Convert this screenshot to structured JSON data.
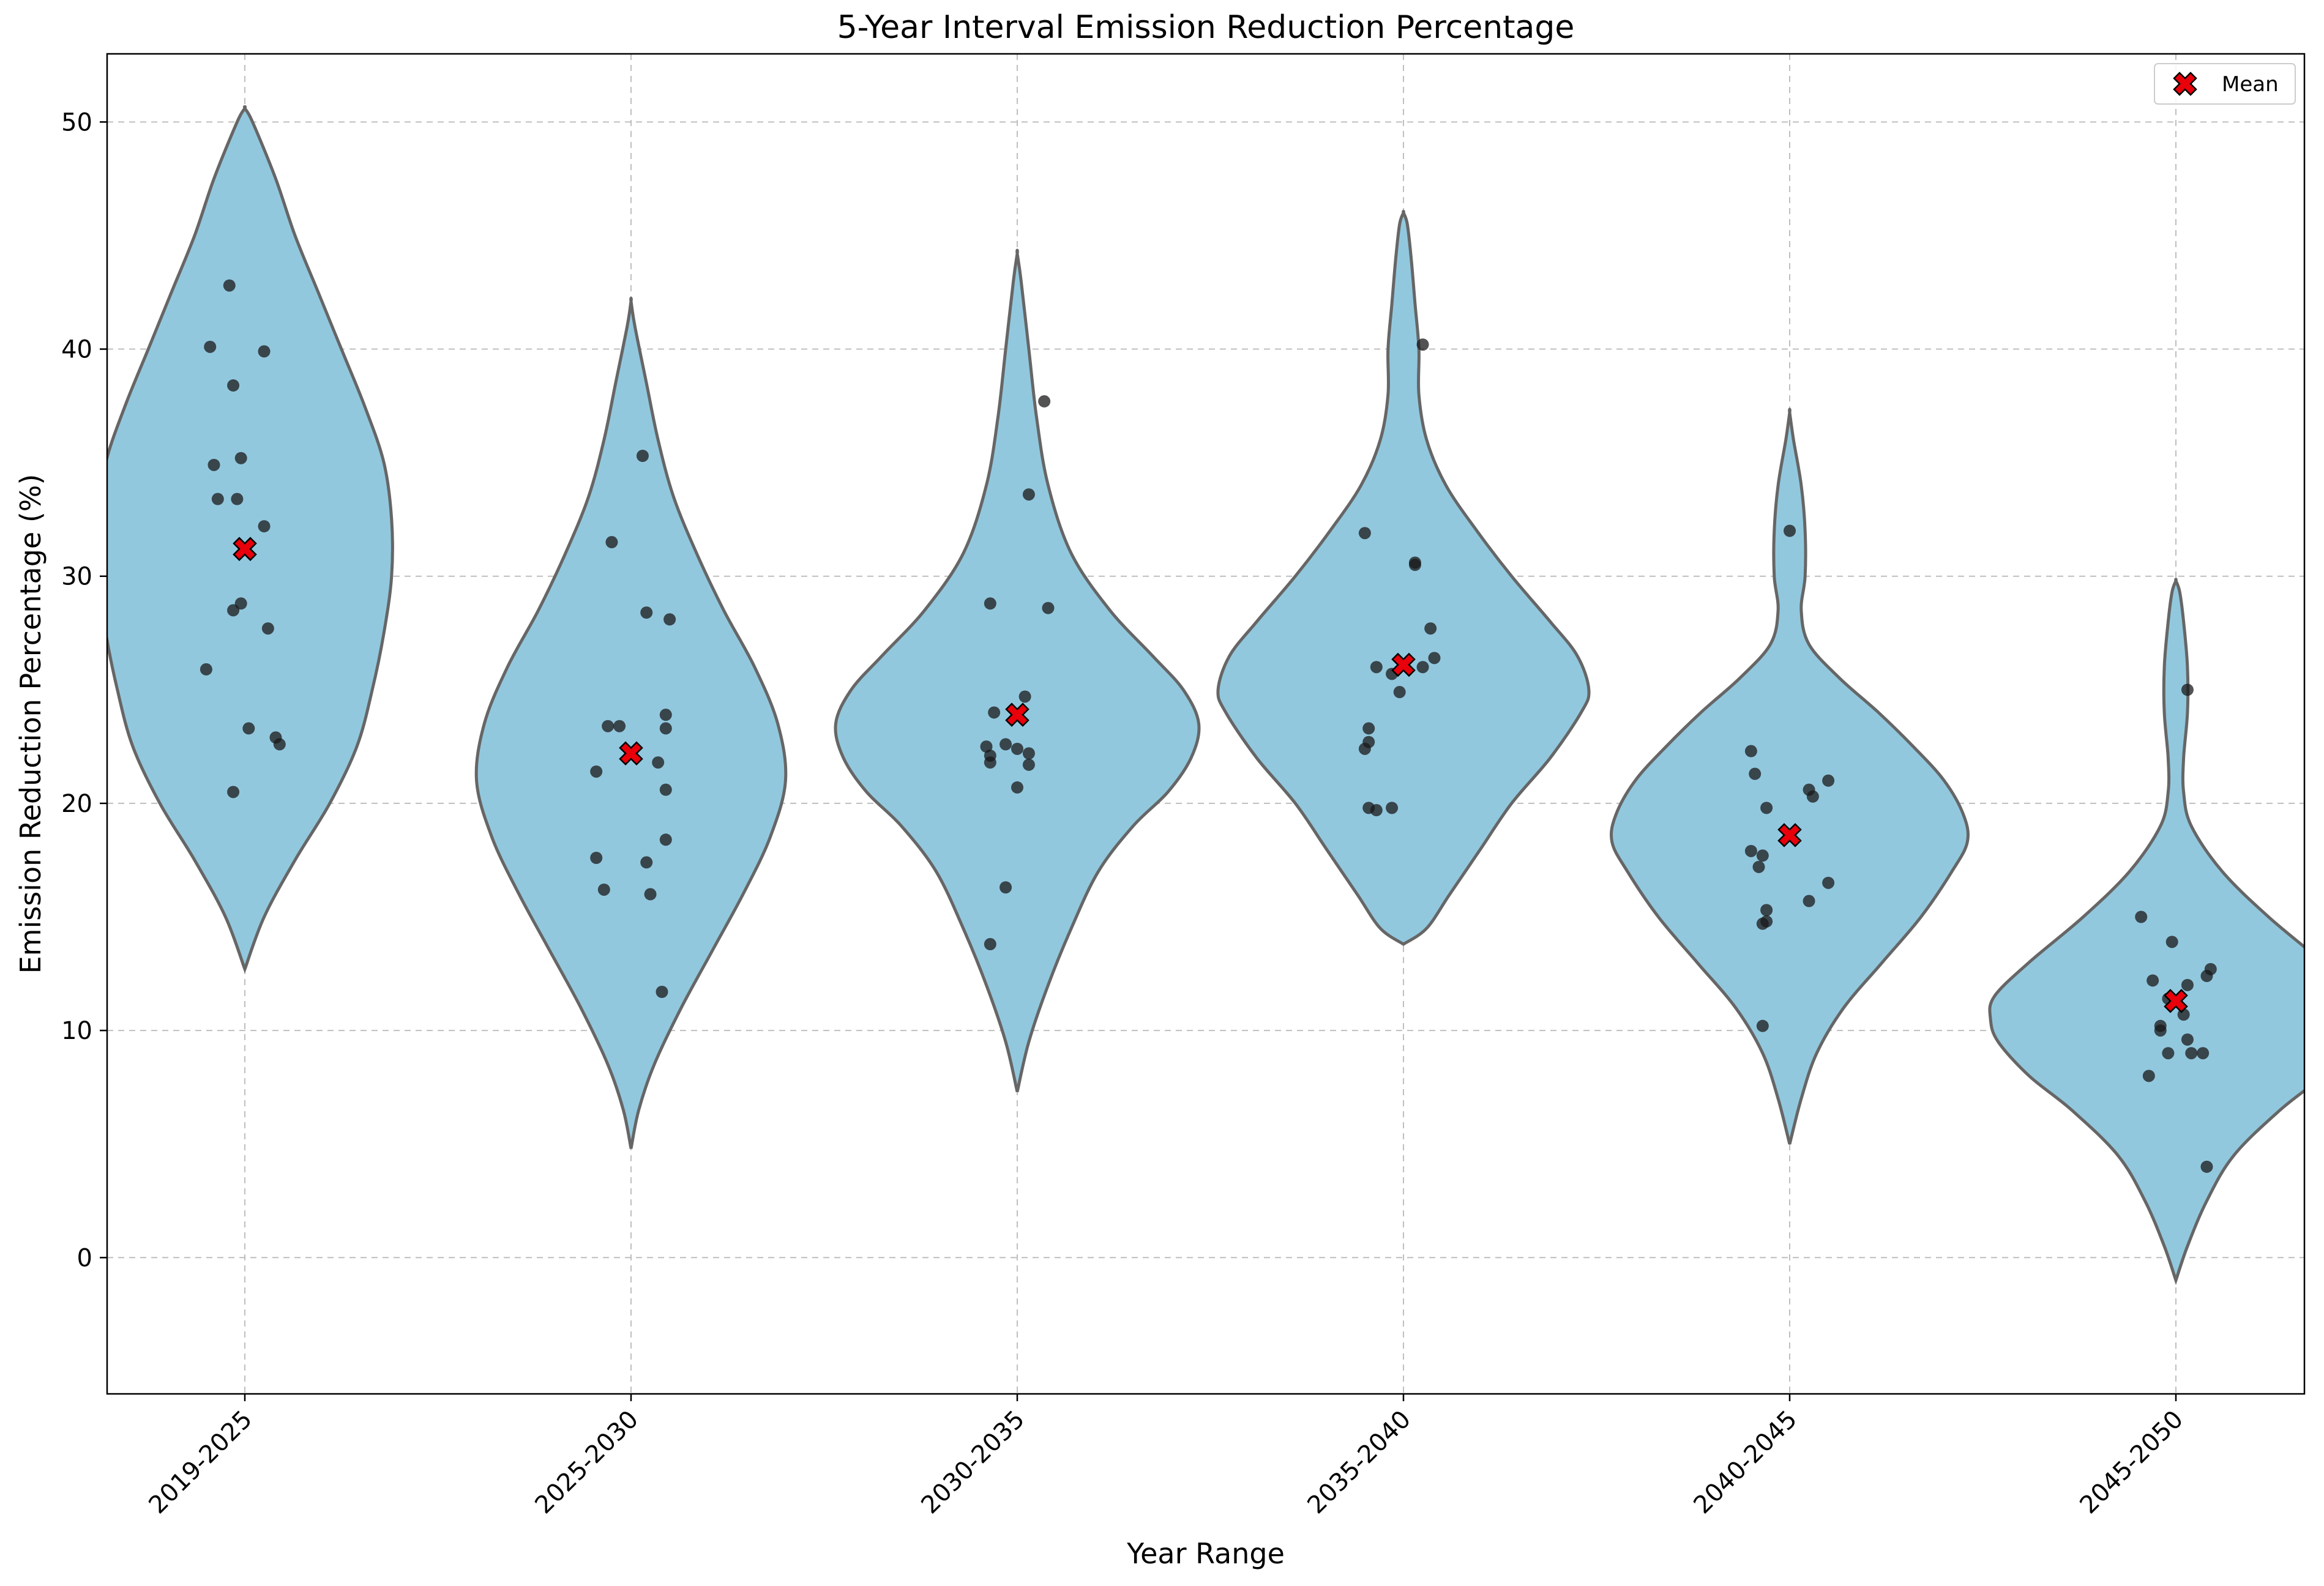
{
  "chart_data": {
    "type": "violin",
    "title": "5-Year Interval Emission Reduction Percentage",
    "xlabel": "Year Range",
    "ylabel": "Emission Reduction Percentage (%)",
    "ylim": [
      -6,
      53
    ],
    "yticks": [
      0,
      10,
      20,
      30,
      40,
      50
    ],
    "grid": true,
    "legend": {
      "position": "top-right",
      "entries": [
        {
          "label": "Mean",
          "marker": "red-x"
        }
      ]
    },
    "colors": {
      "violin_fill": "#92c8de",
      "violin_edge": "#666666",
      "points": "#1a1a1a",
      "mean": "#e8000b"
    },
    "categories": [
      "2019-2025",
      "2025-2030",
      "2030-2035",
      "2035-2040",
      "2040-2045",
      "2045-2050"
    ],
    "means": [
      31.2,
      22.2,
      23.9,
      26.1,
      18.6,
      11.3
    ],
    "density": [
      {
        "range": [
          12.7,
          50.6
        ],
        "profile": [
          [
            12.7,
            0.0
          ],
          [
            15.0,
            0.05
          ],
          [
            17.5,
            0.13
          ],
          [
            20.0,
            0.22
          ],
          [
            22.5,
            0.29
          ],
          [
            25.0,
            0.33
          ],
          [
            27.5,
            0.36
          ],
          [
            30.0,
            0.38
          ],
          [
            32.5,
            0.38
          ],
          [
            35.0,
            0.36
          ],
          [
            37.5,
            0.31
          ],
          [
            40.0,
            0.25
          ],
          [
            42.5,
            0.19
          ],
          [
            45.0,
            0.13
          ],
          [
            47.5,
            0.08
          ],
          [
            50.0,
            0.02
          ],
          [
            50.6,
            0.0
          ]
        ]
      },
      {
        "range": [
          4.8,
          42.1
        ],
        "profile": [
          [
            4.8,
            0.0
          ],
          [
            6.5,
            0.02
          ],
          [
            8.5,
            0.06
          ],
          [
            11.0,
            0.13
          ],
          [
            13.5,
            0.21
          ],
          [
            16.0,
            0.29
          ],
          [
            18.5,
            0.36
          ],
          [
            21.0,
            0.4
          ],
          [
            23.5,
            0.38
          ],
          [
            26.0,
            0.32
          ],
          [
            28.5,
            0.24
          ],
          [
            31.0,
            0.17
          ],
          [
            33.5,
            0.11
          ],
          [
            36.0,
            0.07
          ],
          [
            38.5,
            0.04
          ],
          [
            41.0,
            0.01
          ],
          [
            42.1,
            0.0
          ]
        ]
      },
      {
        "range": [
          7.3,
          44.2
        ],
        "profile": [
          [
            7.3,
            0.0
          ],
          [
            9.5,
            0.03
          ],
          [
            12.0,
            0.08
          ],
          [
            14.5,
            0.14
          ],
          [
            17.0,
            0.21
          ],
          [
            19.0,
            0.3
          ],
          [
            20.5,
            0.39
          ],
          [
            22.0,
            0.45
          ],
          [
            23.5,
            0.47
          ],
          [
            25.0,
            0.43
          ],
          [
            26.5,
            0.35
          ],
          [
            28.5,
            0.24
          ],
          [
            31.0,
            0.14
          ],
          [
            34.0,
            0.08
          ],
          [
            37.0,
            0.05
          ],
          [
            40.0,
            0.03
          ],
          [
            43.0,
            0.01
          ],
          [
            44.2,
            0.0
          ]
        ]
      },
      {
        "range": [
          13.8,
          46.0
        ],
        "profile": [
          [
            13.8,
            0.0
          ],
          [
            14.5,
            0.06
          ],
          [
            16.0,
            0.12
          ],
          [
            18.0,
            0.2
          ],
          [
            20.0,
            0.28
          ],
          [
            22.0,
            0.38
          ],
          [
            24.0,
            0.46
          ],
          [
            25.0,
            0.48
          ],
          [
            26.5,
            0.45
          ],
          [
            28.0,
            0.38
          ],
          [
            30.0,
            0.28
          ],
          [
            32.0,
            0.19
          ],
          [
            34.0,
            0.11
          ],
          [
            36.0,
            0.06
          ],
          [
            38.0,
            0.04
          ],
          [
            40.0,
            0.04
          ],
          [
            42.0,
            0.03
          ],
          [
            44.0,
            0.02
          ],
          [
            45.5,
            0.01
          ],
          [
            46.0,
            0.0
          ]
        ]
      },
      {
        "range": [
          5.0,
          37.2
        ],
        "profile": [
          [
            5.0,
            0.0
          ],
          [
            7.0,
            0.03
          ],
          [
            9.0,
            0.07
          ],
          [
            11.0,
            0.14
          ],
          [
            13.0,
            0.24
          ],
          [
            15.0,
            0.34
          ],
          [
            17.0,
            0.42
          ],
          [
            18.3,
            0.46
          ],
          [
            19.5,
            0.45
          ],
          [
            21.0,
            0.4
          ],
          [
            22.5,
            0.32
          ],
          [
            24.0,
            0.23
          ],
          [
            25.5,
            0.13
          ],
          [
            27.0,
            0.05
          ],
          [
            28.5,
            0.03
          ],
          [
            30.0,
            0.04
          ],
          [
            32.0,
            0.04
          ],
          [
            34.0,
            0.03
          ],
          [
            36.0,
            0.01
          ],
          [
            37.2,
            0.0
          ]
        ]
      },
      {
        "range": [
          -1.0,
          29.8
        ],
        "profile": [
          [
            -1.0,
            0.0
          ],
          [
            0.5,
            0.03
          ],
          [
            2.5,
            0.08
          ],
          [
            4.5,
            0.15
          ],
          [
            6.5,
            0.27
          ],
          [
            8.0,
            0.38
          ],
          [
            9.5,
            0.46
          ],
          [
            10.5,
            0.48
          ],
          [
            11.5,
            0.47
          ],
          [
            13.0,
            0.38
          ],
          [
            15.0,
            0.24
          ],
          [
            17.0,
            0.12
          ],
          [
            19.0,
            0.04
          ],
          [
            20.5,
            0.02
          ],
          [
            22.0,
            0.02
          ],
          [
            24.0,
            0.03
          ],
          [
            26.0,
            0.03
          ],
          [
            28.0,
            0.02
          ],
          [
            29.3,
            0.01
          ],
          [
            29.8,
            0.0
          ]
        ]
      }
    ],
    "points": [
      [
        [
          -0.04,
          42.8
        ],
        [
          -0.09,
          40.1
        ],
        [
          0.05,
          39.9
        ],
        [
          -0.03,
          38.4
        ],
        [
          -0.08,
          34.9
        ],
        [
          -0.01,
          35.2
        ],
        [
          -0.07,
          33.4
        ],
        [
          -0.02,
          33.4
        ],
        [
          0.05,
          32.2
        ],
        [
          -0.03,
          28.5
        ],
        [
          -0.01,
          28.8
        ],
        [
          0.06,
          27.7
        ],
        [
          -0.1,
          25.9
        ],
        [
          0.01,
          23.3
        ],
        [
          0.08,
          22.9
        ],
        [
          0.09,
          22.6
        ],
        [
          -0.03,
          20.5
        ]
      ],
      [
        [
          0.03,
          35.3
        ],
        [
          -0.05,
          31.5
        ],
        [
          0.04,
          28.4
        ],
        [
          0.1,
          28.1
        ],
        [
          -0.06,
          23.4
        ],
        [
          -0.03,
          23.4
        ],
        [
          0.09,
          23.9
        ],
        [
          0.09,
          23.3
        ],
        [
          0.07,
          21.8
        ],
        [
          -0.09,
          21.4
        ],
        [
          0.09,
          20.6
        ],
        [
          0.09,
          18.4
        ],
        [
          -0.09,
          17.6
        ],
        [
          0.04,
          17.4
        ],
        [
          -0.07,
          16.2
        ],
        [
          0.05,
          16.0
        ],
        [
          0.08,
          11.7
        ]
      ],
      [
        [
          0.07,
          37.7
        ],
        [
          0.03,
          33.6
        ],
        [
          -0.07,
          28.8
        ],
        [
          0.08,
          28.6
        ],
        [
          -0.06,
          24.0
        ],
        [
          0.02,
          24.7
        ],
        [
          0.0,
          23.9
        ],
        [
          -0.08,
          22.5
        ],
        [
          -0.03,
          22.6
        ],
        [
          0.0,
          22.4
        ],
        [
          0.03,
          22.2
        ],
        [
          -0.07,
          22.1
        ],
        [
          -0.07,
          21.8
        ],
        [
          0.03,
          21.7
        ],
        [
          0.0,
          20.7
        ],
        [
          -0.03,
          16.3
        ],
        [
          -0.07,
          13.8
        ]
      ],
      [
        [
          0.05,
          40.2
        ],
        [
          -0.1,
          31.9
        ],
        [
          0.03,
          30.6
        ],
        [
          0.03,
          30.5
        ],
        [
          0.07,
          27.7
        ],
        [
          0.08,
          26.4
        ],
        [
          -0.07,
          26.0
        ],
        [
          0.05,
          26.0
        ],
        [
          -0.03,
          25.7
        ],
        [
          -0.01,
          24.9
        ],
        [
          -0.09,
          23.3
        ],
        [
          -0.09,
          22.7
        ],
        [
          -0.1,
          22.4
        ],
        [
          -0.09,
          19.8
        ],
        [
          -0.07,
          19.7
        ],
        [
          -0.03,
          19.8
        ]
      ],
      [
        [
          0.0,
          32.0
        ],
        [
          -0.1,
          22.3
        ],
        [
          -0.09,
          21.3
        ],
        [
          0.1,
          21.0
        ],
        [
          0.05,
          20.6
        ],
        [
          0.06,
          20.3
        ],
        [
          -0.06,
          19.8
        ],
        [
          -0.1,
          17.9
        ],
        [
          -0.07,
          17.7
        ],
        [
          -0.08,
          17.2
        ],
        [
          0.1,
          16.5
        ],
        [
          0.05,
          15.7
        ],
        [
          -0.06,
          15.3
        ],
        [
          -0.06,
          14.8
        ],
        [
          -0.07,
          14.7
        ],
        [
          -0.07,
          10.2
        ]
      ],
      [
        [
          0.03,
          25.0
        ],
        [
          -0.09,
          15.0
        ],
        [
          -0.01,
          13.9
        ],
        [
          0.09,
          12.7
        ],
        [
          0.08,
          12.4
        ],
        [
          -0.06,
          12.2
        ],
        [
          0.03,
          12.0
        ],
        [
          -0.02,
          11.4
        ],
        [
          0.02,
          10.7
        ],
        [
          -0.04,
          10.2
        ],
        [
          -0.04,
          10.0
        ],
        [
          0.03,
          9.6
        ],
        [
          0.04,
          9.0
        ],
        [
          0.07,
          9.0
        ],
        [
          -0.02,
          9.0
        ],
        [
          -0.07,
          8.0
        ],
        [
          0.08,
          4.0
        ]
      ]
    ]
  }
}
